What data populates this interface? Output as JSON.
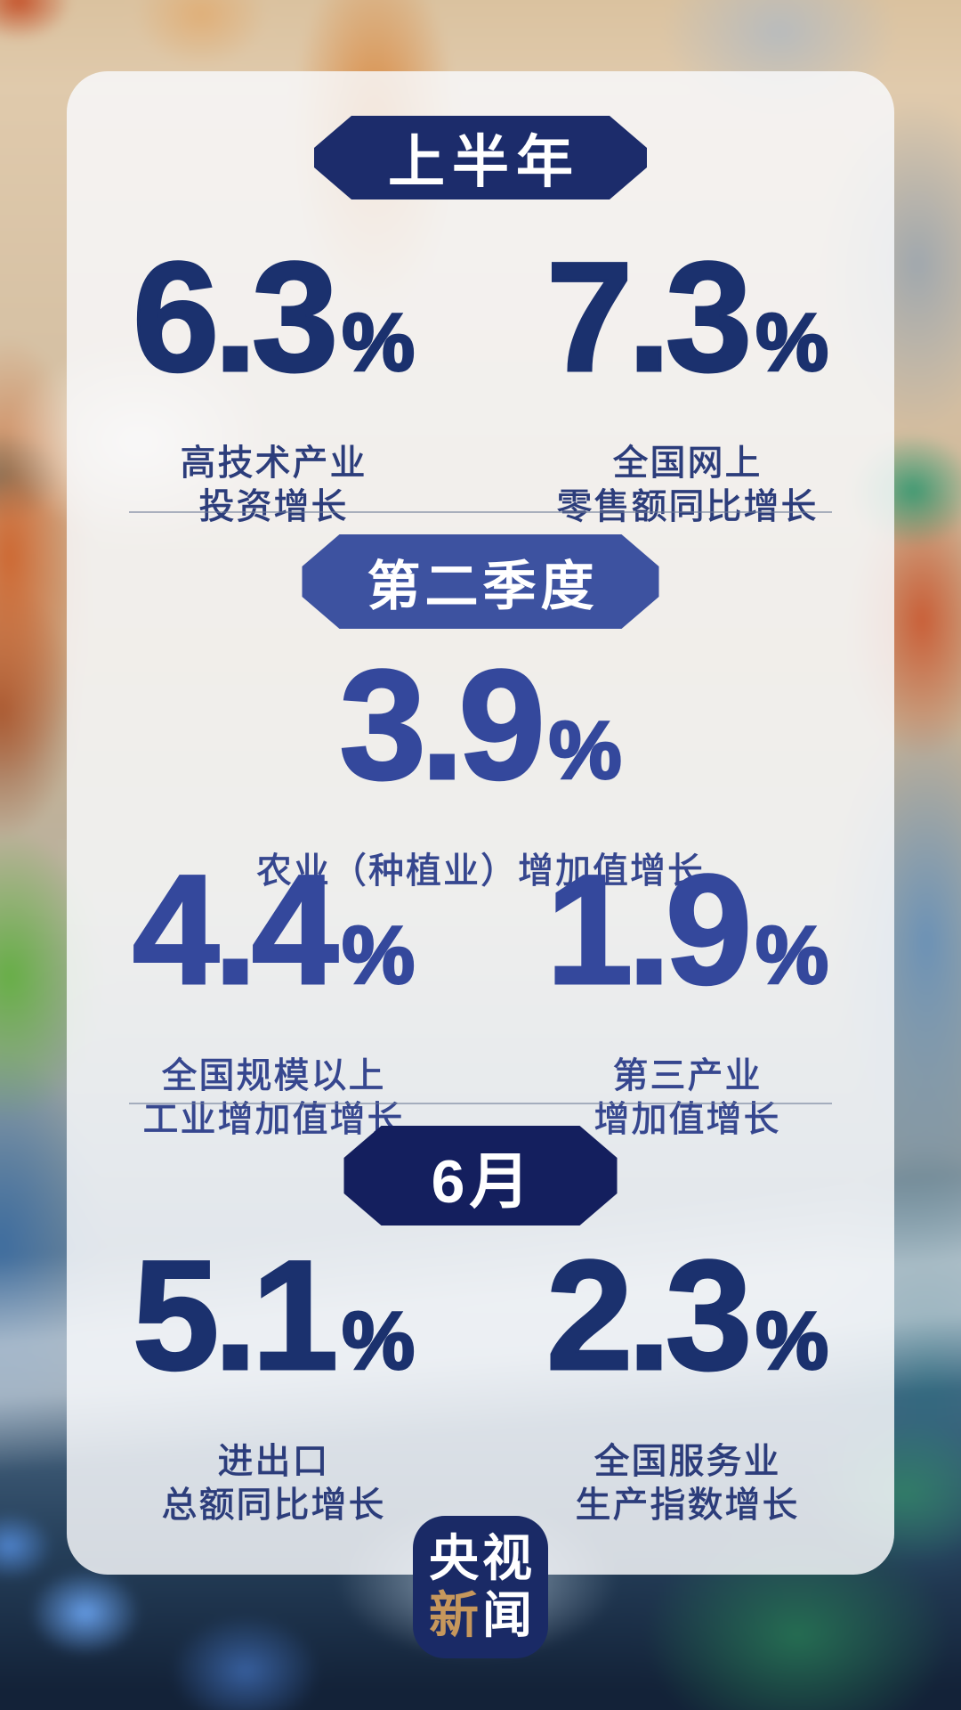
{
  "chart_data": {
    "type": "table",
    "groups": [
      {
        "period": "上半年",
        "stats": [
          {
            "value": 6.3,
            "unit": "%",
            "label": "高技术产业投资增长"
          },
          {
            "value": 7.3,
            "unit": "%",
            "label": "全国网上零售额同比增长"
          }
        ]
      },
      {
        "period": "第二季度",
        "stats": [
          {
            "value": 3.9,
            "unit": "%",
            "label": "农业（种植业）增加值增长"
          },
          {
            "value": 4.4,
            "unit": "%",
            "label": "全国规模以上工业增加值增长"
          },
          {
            "value": 1.9,
            "unit": "%",
            "label": "第三产业增加值增长"
          }
        ]
      },
      {
        "period": "6月",
        "stats": [
          {
            "value": 5.1,
            "unit": "%",
            "label": "进出口总额同比增长"
          },
          {
            "value": 2.3,
            "unit": "%",
            "label": "全国服务业生产指数增长"
          }
        ]
      }
    ]
  },
  "sections": [
    {
      "banner": "上半年",
      "stats": [
        {
          "value": "6.3",
          "unit": "%",
          "label_lines": [
            "高技术产业",
            "投资增长"
          ]
        },
        {
          "value": "7.3",
          "unit": "%",
          "label_lines": [
            "全国网上",
            "零售额同比增长"
          ]
        }
      ]
    },
    {
      "banner": "第二季度",
      "stats": [
        {
          "value": "3.9",
          "unit": "%",
          "label_lines": [
            "农业（种植业）增加值增长"
          ]
        },
        {
          "value": "4.4",
          "unit": "%",
          "label_lines": [
            "全国规模以上",
            "工业增加值增长"
          ]
        },
        {
          "value": "1.9",
          "unit": "%",
          "label_lines": [
            "第三产业",
            "增加值增长"
          ]
        }
      ]
    },
    {
      "banner": "6月",
      "stats": [
        {
          "value": "5.1",
          "unit": "%",
          "label_lines": [
            "进出口",
            "总额同比增长"
          ]
        },
        {
          "value": "2.3",
          "unit": "%",
          "label_lines": [
            "全国服务业",
            "生产指数增长"
          ]
        }
      ]
    }
  ],
  "logo": {
    "line1": "央视",
    "line2_first": "新",
    "line2_rest": "闻"
  },
  "colors": {
    "number_navy": "#1b316e",
    "number_royal_blue": "#34489c",
    "banner_first_half": "#1c2c6b",
    "banner_q2": "#3d52a0",
    "banner_june": "#141f5e",
    "logo_background": "#1a2a66",
    "logo_gold": "#c6975c",
    "label_navy": "#2c3d7b",
    "divider": "#6e7a96"
  }
}
